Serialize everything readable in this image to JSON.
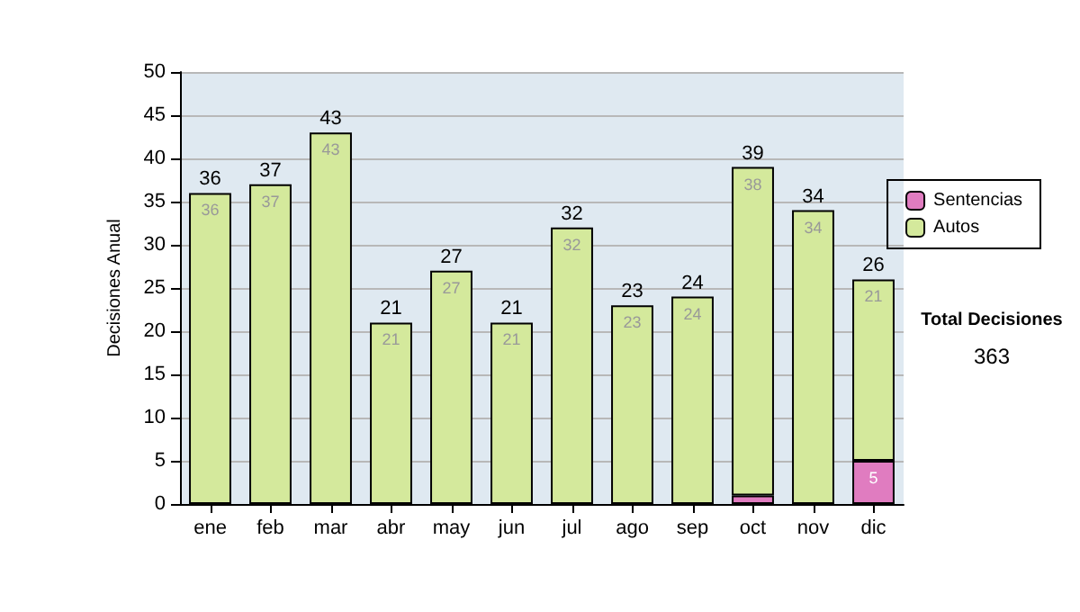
{
  "chart_data": {
    "type": "bar",
    "ylabel": "Decisiones Anual",
    "categories": [
      "ene",
      "feb",
      "mar",
      "abr",
      "may",
      "jun",
      "jul",
      "ago",
      "sep",
      "oct",
      "nov",
      "dic"
    ],
    "stacked": true,
    "series": [
      {
        "name": "Sentencias",
        "color": "#e07cc0",
        "values": [
          0,
          0,
          0,
          0,
          0,
          0,
          0,
          0,
          0,
          1,
          0,
          5
        ],
        "value_labels": [
          null,
          null,
          null,
          null,
          null,
          null,
          null,
          null,
          null,
          null,
          null,
          "5"
        ]
      },
      {
        "name": "Autos",
        "color": "#d4e99c",
        "values": [
          36,
          37,
          43,
          21,
          27,
          21,
          32,
          23,
          24,
          38,
          34,
          21
        ],
        "value_labels": [
          "36",
          "37",
          "43",
          "21",
          "27",
          "21",
          "32",
          "23",
          "24",
          "38",
          "34",
          "21"
        ]
      }
    ],
    "totals": [
      "36",
      "37",
      "43",
      "21",
      "27",
      "21",
      "32",
      "23",
      "24",
      "39",
      "34",
      "26"
    ],
    "ylim": [
      0,
      50
    ],
    "yticks": [
      0,
      5,
      10,
      15,
      20,
      25,
      30,
      35,
      40,
      45,
      50
    ],
    "grid": "y",
    "legend": "right",
    "annotations": [
      "Total Decisiones",
      "363"
    ]
  }
}
